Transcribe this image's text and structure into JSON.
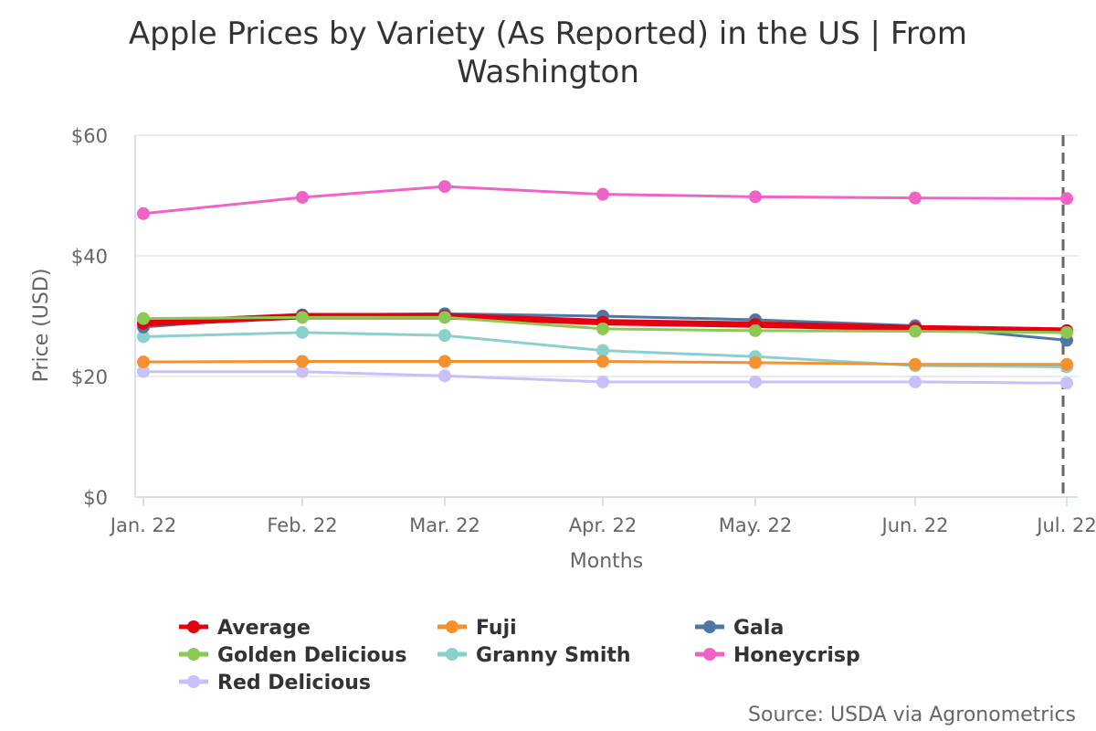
{
  "chart_data": {
    "type": "line",
    "title": "Apple Prices by Variety (As Reported) in the US | From",
    "title_line2": "Washington",
    "xlabel": "Months",
    "ylabel": "Price (USD)",
    "categories": [
      "Jan. 22",
      "Feb. 22",
      "Mar. 22",
      "Apr. 22",
      "May. 22",
      "Jun. 22",
      "Jul. 22"
    ],
    "ylim": [
      0,
      60
    ],
    "yticks": [
      0,
      20,
      40,
      60
    ],
    "ytick_labels": [
      "$0",
      "$20",
      "$40",
      "$60"
    ],
    "grid": "horizontal",
    "legend_position": "bottom",
    "source": "Source: USDA via Agronometrics",
    "series": [
      {
        "name": "Average",
        "color": "#e3000f",
        "values": [
          28.8,
          30.0,
          30.0,
          29.0,
          28.6,
          28.0,
          27.6
        ]
      },
      {
        "name": "Fuji",
        "color": "#f7902f",
        "values": [
          22.4,
          22.5,
          22.5,
          22.5,
          22.3,
          22.0,
          22.0
        ]
      },
      {
        "name": "Gala",
        "color": "#4f77a5",
        "values": [
          28.2,
          30.2,
          30.4,
          30.0,
          29.4,
          28.4,
          26.0
        ]
      },
      {
        "name": "Golden Delicious",
        "color": "#8bc952",
        "values": [
          29.6,
          29.8,
          29.8,
          27.9,
          27.6,
          27.5,
          27.3
        ]
      },
      {
        "name": "Granny Smith",
        "color": "#8ad0cd",
        "values": [
          26.6,
          27.3,
          26.8,
          24.3,
          23.3,
          21.8,
          21.6
        ]
      },
      {
        "name": "Honeycrisp",
        "color": "#f063c6",
        "values": [
          47.0,
          49.7,
          51.5,
          50.2,
          49.8,
          49.6,
          49.5
        ]
      },
      {
        "name": "Red Delicious",
        "color": "#c9bffb",
        "values": [
          20.8,
          20.8,
          20.1,
          19.1,
          19.1,
          19.1,
          18.9
        ]
      }
    ]
  }
}
